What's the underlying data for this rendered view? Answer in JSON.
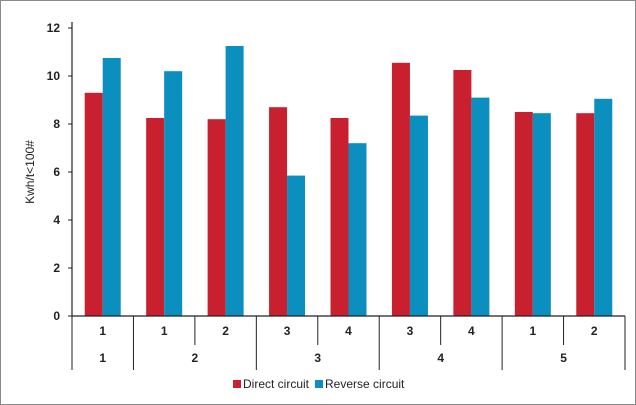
{
  "chart_data": {
    "type": "bar",
    "title": "",
    "xlabel": "",
    "ylabel": "Kwh/t<100#",
    "ylim": [
      0,
      12
    ],
    "yticks": [
      0,
      2,
      4,
      6,
      8,
      10,
      12
    ],
    "grid": false,
    "legend_position": "bottom-center",
    "categories": [
      {
        "inner": "1",
        "group": "1"
      },
      {
        "inner": "1",
        "group": "2"
      },
      {
        "inner": "2",
        "group": "2"
      },
      {
        "inner": "3",
        "group": "3"
      },
      {
        "inner": "4",
        "group": "3"
      },
      {
        "inner": "3",
        "group": "4"
      },
      {
        "inner": "4",
        "group": "4"
      },
      {
        "inner": "1",
        "group": "5"
      },
      {
        "inner": "2",
        "group": "5"
      }
    ],
    "groups": [
      {
        "label": "1",
        "span": 1
      },
      {
        "label": "2",
        "span": 2
      },
      {
        "label": "3",
        "span": 2
      },
      {
        "label": "4",
        "span": 2
      },
      {
        "label": "5",
        "span": 2
      }
    ],
    "series": [
      {
        "name": "Direct circuit",
        "color": "#c8202f",
        "values": [
          9.3,
          8.25,
          8.2,
          8.7,
          8.25,
          10.55,
          10.25,
          8.5,
          8.45
        ]
      },
      {
        "name": "Reverse circuit",
        "color": "#0a8fbe",
        "values": [
          10.75,
          10.2,
          11.25,
          5.85,
          7.2,
          8.35,
          9.1,
          8.45,
          9.05
        ]
      }
    ]
  }
}
